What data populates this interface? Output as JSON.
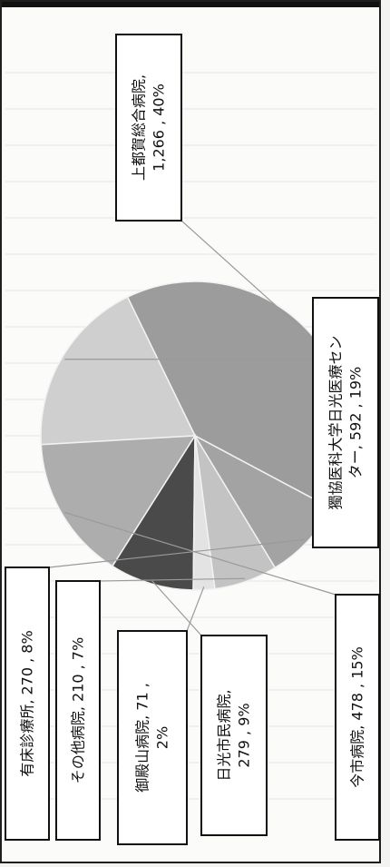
{
  "chart_data": {
    "type": "pie",
    "title": "",
    "slices": [
      {
        "name": "上都賀総合病院",
        "value": 1266,
        "percent": 40,
        "color": "#9c9c9c",
        "label_lines": [
          "上都賀総合病院,",
          "1,266 , 40%"
        ]
      },
      {
        "name": "獨協医科大学日光医療センター",
        "value": 592,
        "percent": 19,
        "color": "#cfcfcf",
        "label_lines": [
          "獨協医科大学日光医療セン",
          "ター, 592 , 19%"
        ]
      },
      {
        "name": "今市病院",
        "value": 478,
        "percent": 15,
        "color": "#adadad",
        "label_lines": [
          "今市病院, 478 , 15%"
        ]
      },
      {
        "name": "日光市民病院",
        "value": 279,
        "percent": 9,
        "color": "#4a4a4a",
        "label_lines": [
          "日光市民病院,",
          "279 , 9%"
        ]
      },
      {
        "name": "御殿山病院",
        "value": 71,
        "percent": 2,
        "color": "#e3e3e3",
        "label_lines": [
          "御殿山病院, 71 ,",
          "2%"
        ]
      },
      {
        "name": "その他病院",
        "value": 210,
        "percent": 7,
        "color": "#c3c3c3",
        "label_lines": [
          "その他病院, 210 , 7%"
        ]
      },
      {
        "name": "有床診療所",
        "value": 270,
        "percent": 8,
        "color": "#a3a3a3",
        "label_lines": [
          "有床診療所, 270 , 8%"
        ]
      }
    ]
  }
}
